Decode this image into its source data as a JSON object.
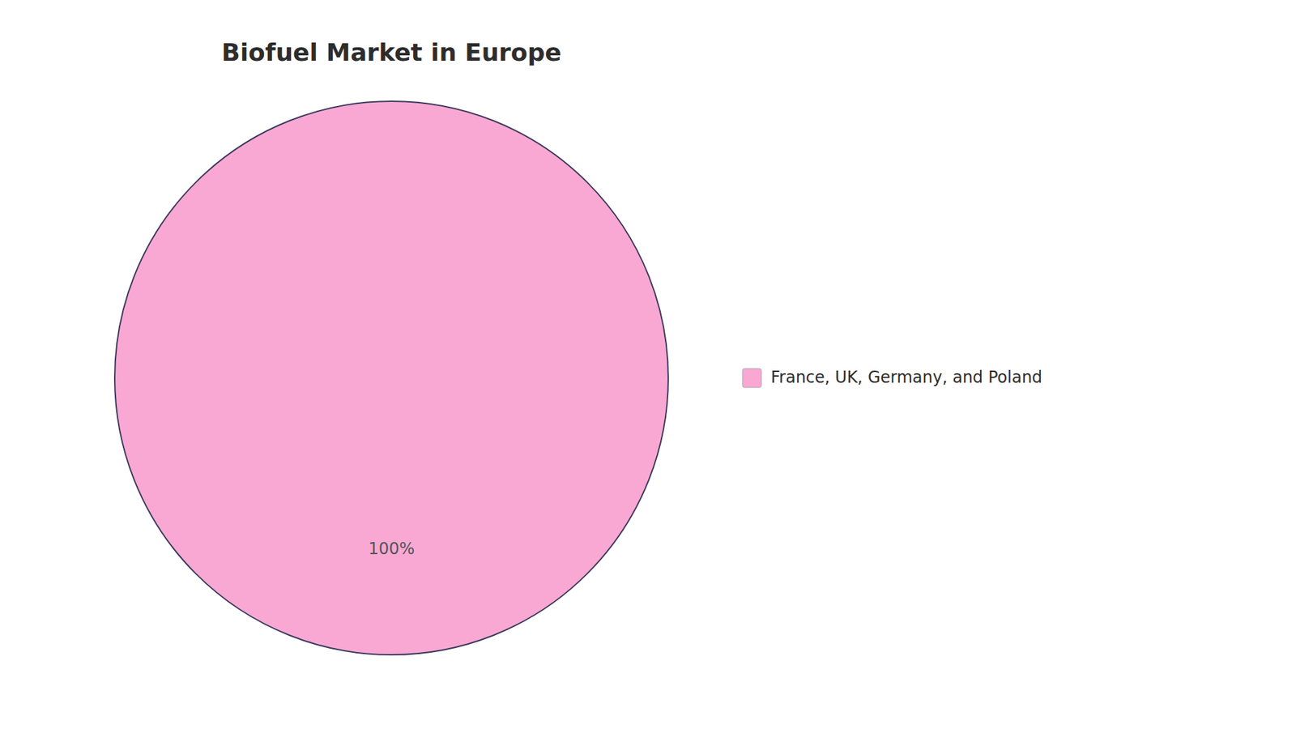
{
  "chart_data": {
    "type": "pie",
    "title": "Biofuel Market in Europe",
    "categories": [
      "France, UK, Germany, and Poland"
    ],
    "values": [
      100
    ],
    "value_labels": [
      "100%"
    ],
    "colors": [
      "#f9a8d4"
    ],
    "data_labels": true,
    "legend": "right"
  }
}
